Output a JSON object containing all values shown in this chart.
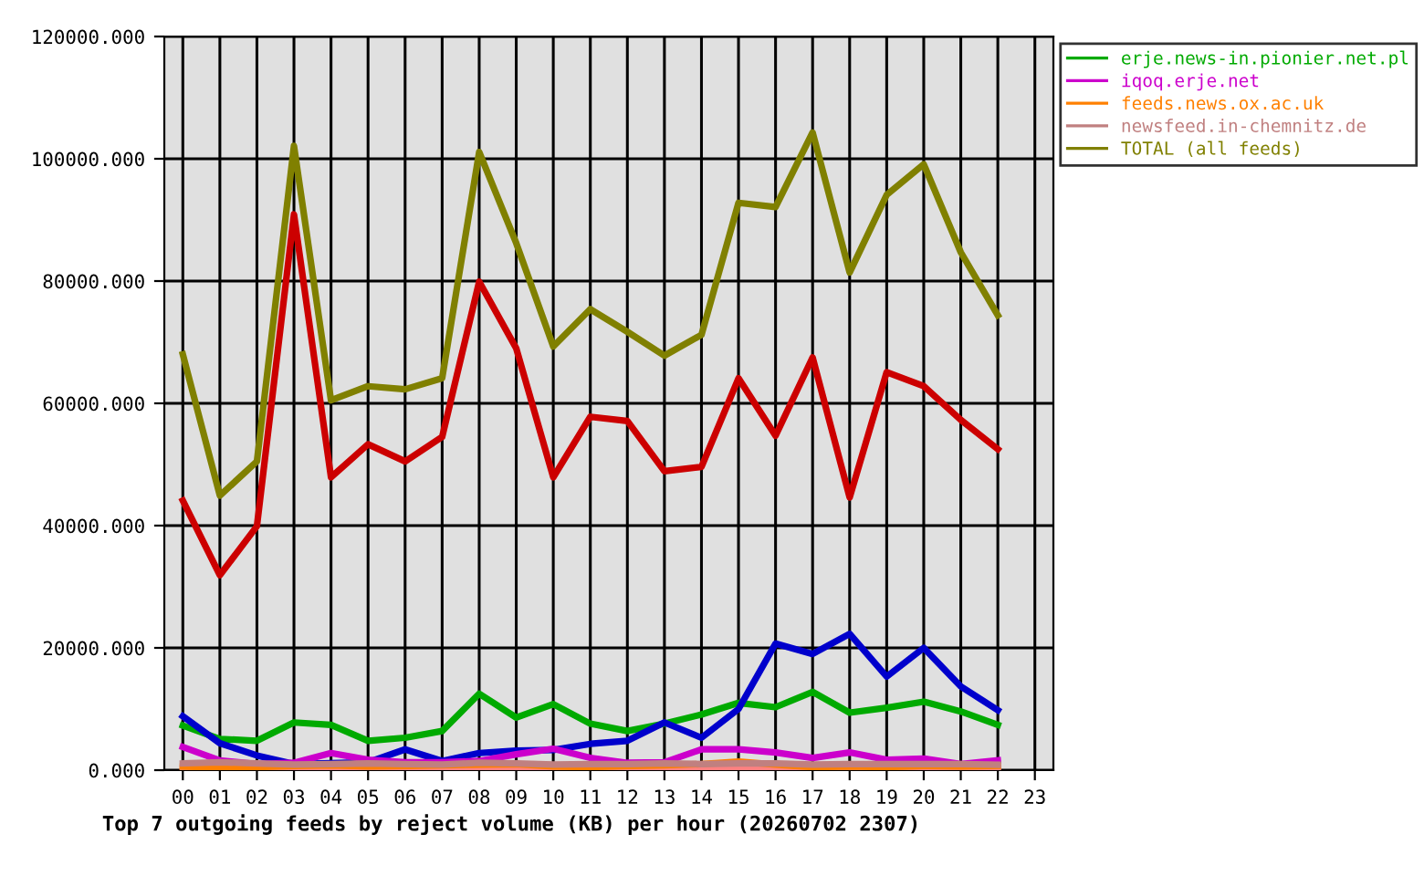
{
  "chart_data": {
    "type": "line",
    "title": "Top 7 outgoing feeds by reject volume (KB) per hour (20260702 2307)",
    "categories": [
      "00",
      "01",
      "02",
      "03",
      "04",
      "05",
      "06",
      "07",
      "08",
      "09",
      "10",
      "11",
      "12",
      "13",
      "14",
      "15",
      "16",
      "17",
      "18",
      "19",
      "20",
      "21",
      "22",
      "23"
    ],
    "ylim": [
      0,
      120000
    ],
    "yticks": [
      {
        "value": 0,
        "label": "0.000"
      },
      {
        "value": 20000,
        "label": "20000.000"
      },
      {
        "value": 40000,
        "label": "40000.000"
      },
      {
        "value": 60000,
        "label": "60000.000"
      },
      {
        "value": 80000,
        "label": "80000.000"
      },
      {
        "value": 100000,
        "label": "100000.000"
      },
      {
        "value": 120000,
        "label": "120000.000"
      }
    ],
    "grid": true,
    "legend": "top right",
    "series": [
      {
        "color": "#cc0000",
        "values": [
          44100,
          31900,
          39900,
          90900,
          47900,
          53300,
          50500,
          54500,
          79900,
          69000,
          47900,
          57800,
          57100,
          48900,
          49600,
          64100,
          54700,
          67500,
          44600,
          65100,
          62800,
          57300,
          52500,
          null
        ]
      },
      {
        "name": "erje.news-in.pionier.net.pl",
        "color": "#00aa00",
        "values": [
          7300,
          5100,
          4800,
          7800,
          7400,
          4800,
          5300,
          6400,
          12500,
          8600,
          10800,
          7600,
          6400,
          7600,
          9100,
          11000,
          10300,
          12800,
          9400,
          10200,
          11200,
          9600,
          7400,
          null
        ]
      },
      {
        "color": "#0000cc",
        "values": [
          8800,
          4400,
          2400,
          1000,
          null,
          1300,
          3400,
          1500,
          2800,
          3200,
          3300,
          4300,
          4800,
          7800,
          5300,
          10000,
          20700,
          19000,
          22300,
          15300,
          20000,
          13700,
          9800,
          null
        ]
      },
      {
        "name": "iqoq.erje.net",
        "color": "#cc00cc",
        "values": [
          3800,
          1600,
          1000,
          1200,
          2800,
          1700,
          1300,
          1300,
          1500,
          2600,
          3500,
          2000,
          1200,
          1300,
          3400,
          3400,
          2900,
          2000,
          2900,
          1700,
          1900,
          1000,
          1600,
          null
        ]
      },
      {
        "color": "#ff8080",
        "values": [
          300,
          200,
          200,
          200,
          300,
          200,
          200,
          200,
          300,
          200,
          200,
          200,
          200,
          200,
          300,
          300,
          200,
          200,
          200,
          200,
          300,
          200,
          300,
          null
        ]
      },
      {
        "name": "feeds.news.ox.ac.uk",
        "color": "#ff8000",
        "values": [
          600,
          400,
          500,
          700,
          800,
          600,
          700,
          800,
          900,
          1000,
          600,
          500,
          700,
          800,
          1000,
          1400,
          900,
          500,
          600,
          500,
          700,
          600,
          700,
          null
        ]
      },
      {
        "name": "newsfeed.in-chemnitz.de",
        "color": "#c08080",
        "values": [
          1100,
          1300,
          1100,
          900,
          1000,
          1100,
          1000,
          900,
          1200,
          1100,
          900,
          1000,
          1000,
          1100,
          1000,
          1100,
          1100,
          900,
          1000,
          1000,
          1000,
          1000,
          900,
          null
        ]
      },
      {
        "name": "TOTAL (all feeds)",
        "color": "#808000",
        "values": [
          68000,
          44900,
          50500,
          102100,
          60500,
          62800,
          62300,
          64100,
          101100,
          86200,
          69300,
          75400,
          71700,
          67800,
          71200,
          92800,
          92100,
          104300,
          81400,
          94100,
          99100,
          84700,
          74400,
          null
        ]
      }
    ]
  }
}
